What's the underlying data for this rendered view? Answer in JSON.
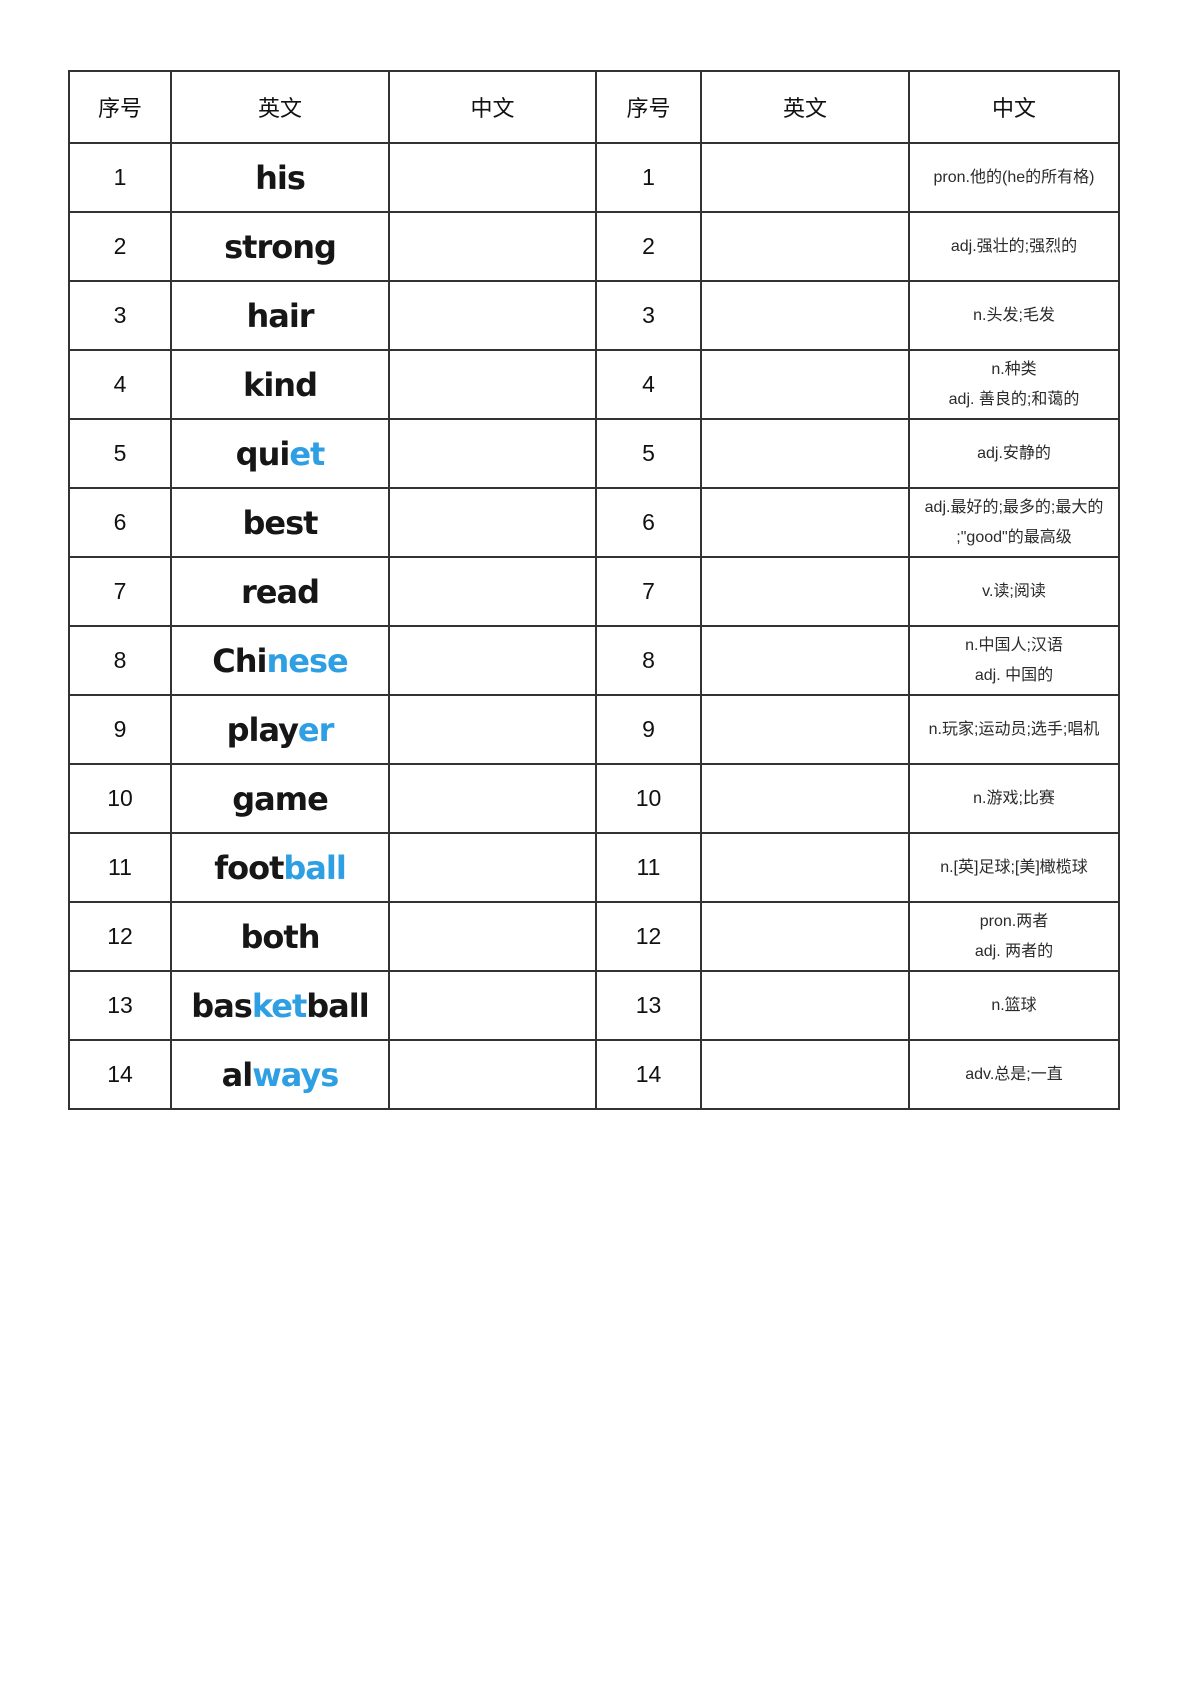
{
  "colors": {
    "highlight_blue": "#2E9FE3",
    "word_text": "#161616",
    "definition_text": "#2b2b2b",
    "border_color": "#333333",
    "page_background": "#ffffff"
  },
  "table": {
    "headers": [
      "序号",
      "英文",
      "中文",
      "序号",
      "英文",
      "中文"
    ],
    "rows": [
      {
        "num": "1",
        "word": [
          {
            "text": "his",
            "highlight": false
          }
        ],
        "definition": [
          "pron.他的(he的所有格)"
        ]
      },
      {
        "num": "2",
        "word": [
          {
            "text": "strong",
            "highlight": false
          }
        ],
        "definition": [
          "adj.强壮的;强烈的"
        ]
      },
      {
        "num": "3",
        "word": [
          {
            "text": "hair",
            "highlight": false
          }
        ],
        "definition": [
          "n.头发;毛发"
        ]
      },
      {
        "num": "4",
        "word": [
          {
            "text": "kind",
            "highlight": false
          }
        ],
        "definition": [
          "n.种类",
          "adj. 善良的;和蔼的"
        ]
      },
      {
        "num": "5",
        "word": [
          {
            "text": "qui",
            "highlight": false
          },
          {
            "text": "et",
            "highlight": true
          }
        ],
        "definition": [
          "adj.安静的"
        ]
      },
      {
        "num": "6",
        "word": [
          {
            "text": "best",
            "highlight": false
          }
        ],
        "definition": [
          "adj.最好的;最多的;最大的",
          ";\"good\"的最高级"
        ]
      },
      {
        "num": "7",
        "word": [
          {
            "text": "read",
            "highlight": false
          }
        ],
        "definition": [
          "v.读;阅读"
        ]
      },
      {
        "num": "8",
        "word": [
          {
            "text": "Chi",
            "highlight": false
          },
          {
            "text": "nese",
            "highlight": true
          }
        ],
        "definition": [
          "n.中国人;汉语",
          "adj. 中国的"
        ]
      },
      {
        "num": "9",
        "word": [
          {
            "text": "play",
            "highlight": false
          },
          {
            "text": "er",
            "highlight": true
          }
        ],
        "definition": [
          "n.玩家;运动员;选手;唱机"
        ]
      },
      {
        "num": "10",
        "word": [
          {
            "text": "game",
            "highlight": false
          }
        ],
        "definition": [
          "n.游戏;比赛"
        ]
      },
      {
        "num": "11",
        "word": [
          {
            "text": "foot",
            "highlight": false
          },
          {
            "text": "ball",
            "highlight": true
          }
        ],
        "definition": [
          "n.[英]足球;[美]橄榄球"
        ]
      },
      {
        "num": "12",
        "word": [
          {
            "text": "both",
            "highlight": false
          }
        ],
        "definition": [
          "pron.两者",
          "adj. 两者的"
        ]
      },
      {
        "num": "13",
        "word": [
          {
            "text": "bas",
            "highlight": false
          },
          {
            "text": "ket",
            "highlight": true
          },
          {
            "text": "ball",
            "highlight": false
          }
        ],
        "definition": [
          "n.篮球"
        ]
      },
      {
        "num": "14",
        "word": [
          {
            "text": "al",
            "highlight": false
          },
          {
            "text": "ways",
            "highlight": true
          }
        ],
        "definition": [
          "adv.总是;一直"
        ]
      }
    ]
  }
}
